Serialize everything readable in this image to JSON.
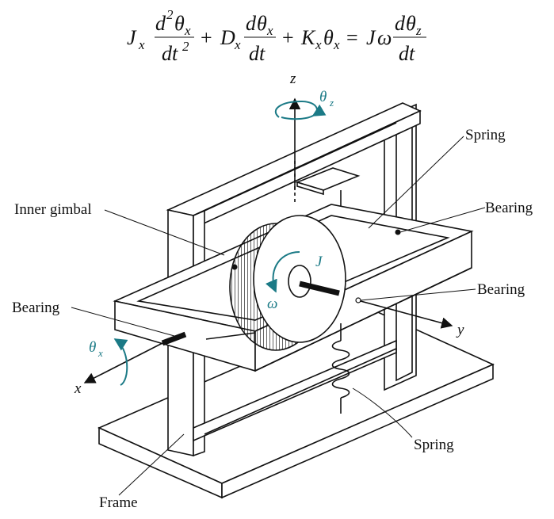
{
  "equation": {
    "J": "J",
    "D": "D",
    "K": "K",
    "sub_x": "x",
    "sub_z": "z",
    "d": "d",
    "dt": "dt",
    "dt2": "dt",
    "sup2": "2",
    "theta": "θ",
    "omega": "ω",
    "plus": "+",
    "equals": "=",
    "numerator_order_2": "2"
  },
  "labels": {
    "z_axis": "z",
    "theta_z": "θ",
    "theta_z_sub": "z",
    "spring_top": "Spring",
    "inner_gimbal": "Inner gimbal",
    "bearing_right_top": "Bearing",
    "J": "J",
    "omega": "ω",
    "bearing_right_mid": "Bearing",
    "bearing_left": "Bearing",
    "y_axis": "y",
    "theta_x": "θ",
    "theta_x_sub": "x",
    "x_axis": "x",
    "spring_bottom": "Spring",
    "frame": "Frame"
  },
  "colors": {
    "annotation": "#1b7a86",
    "line": "#111111"
  }
}
